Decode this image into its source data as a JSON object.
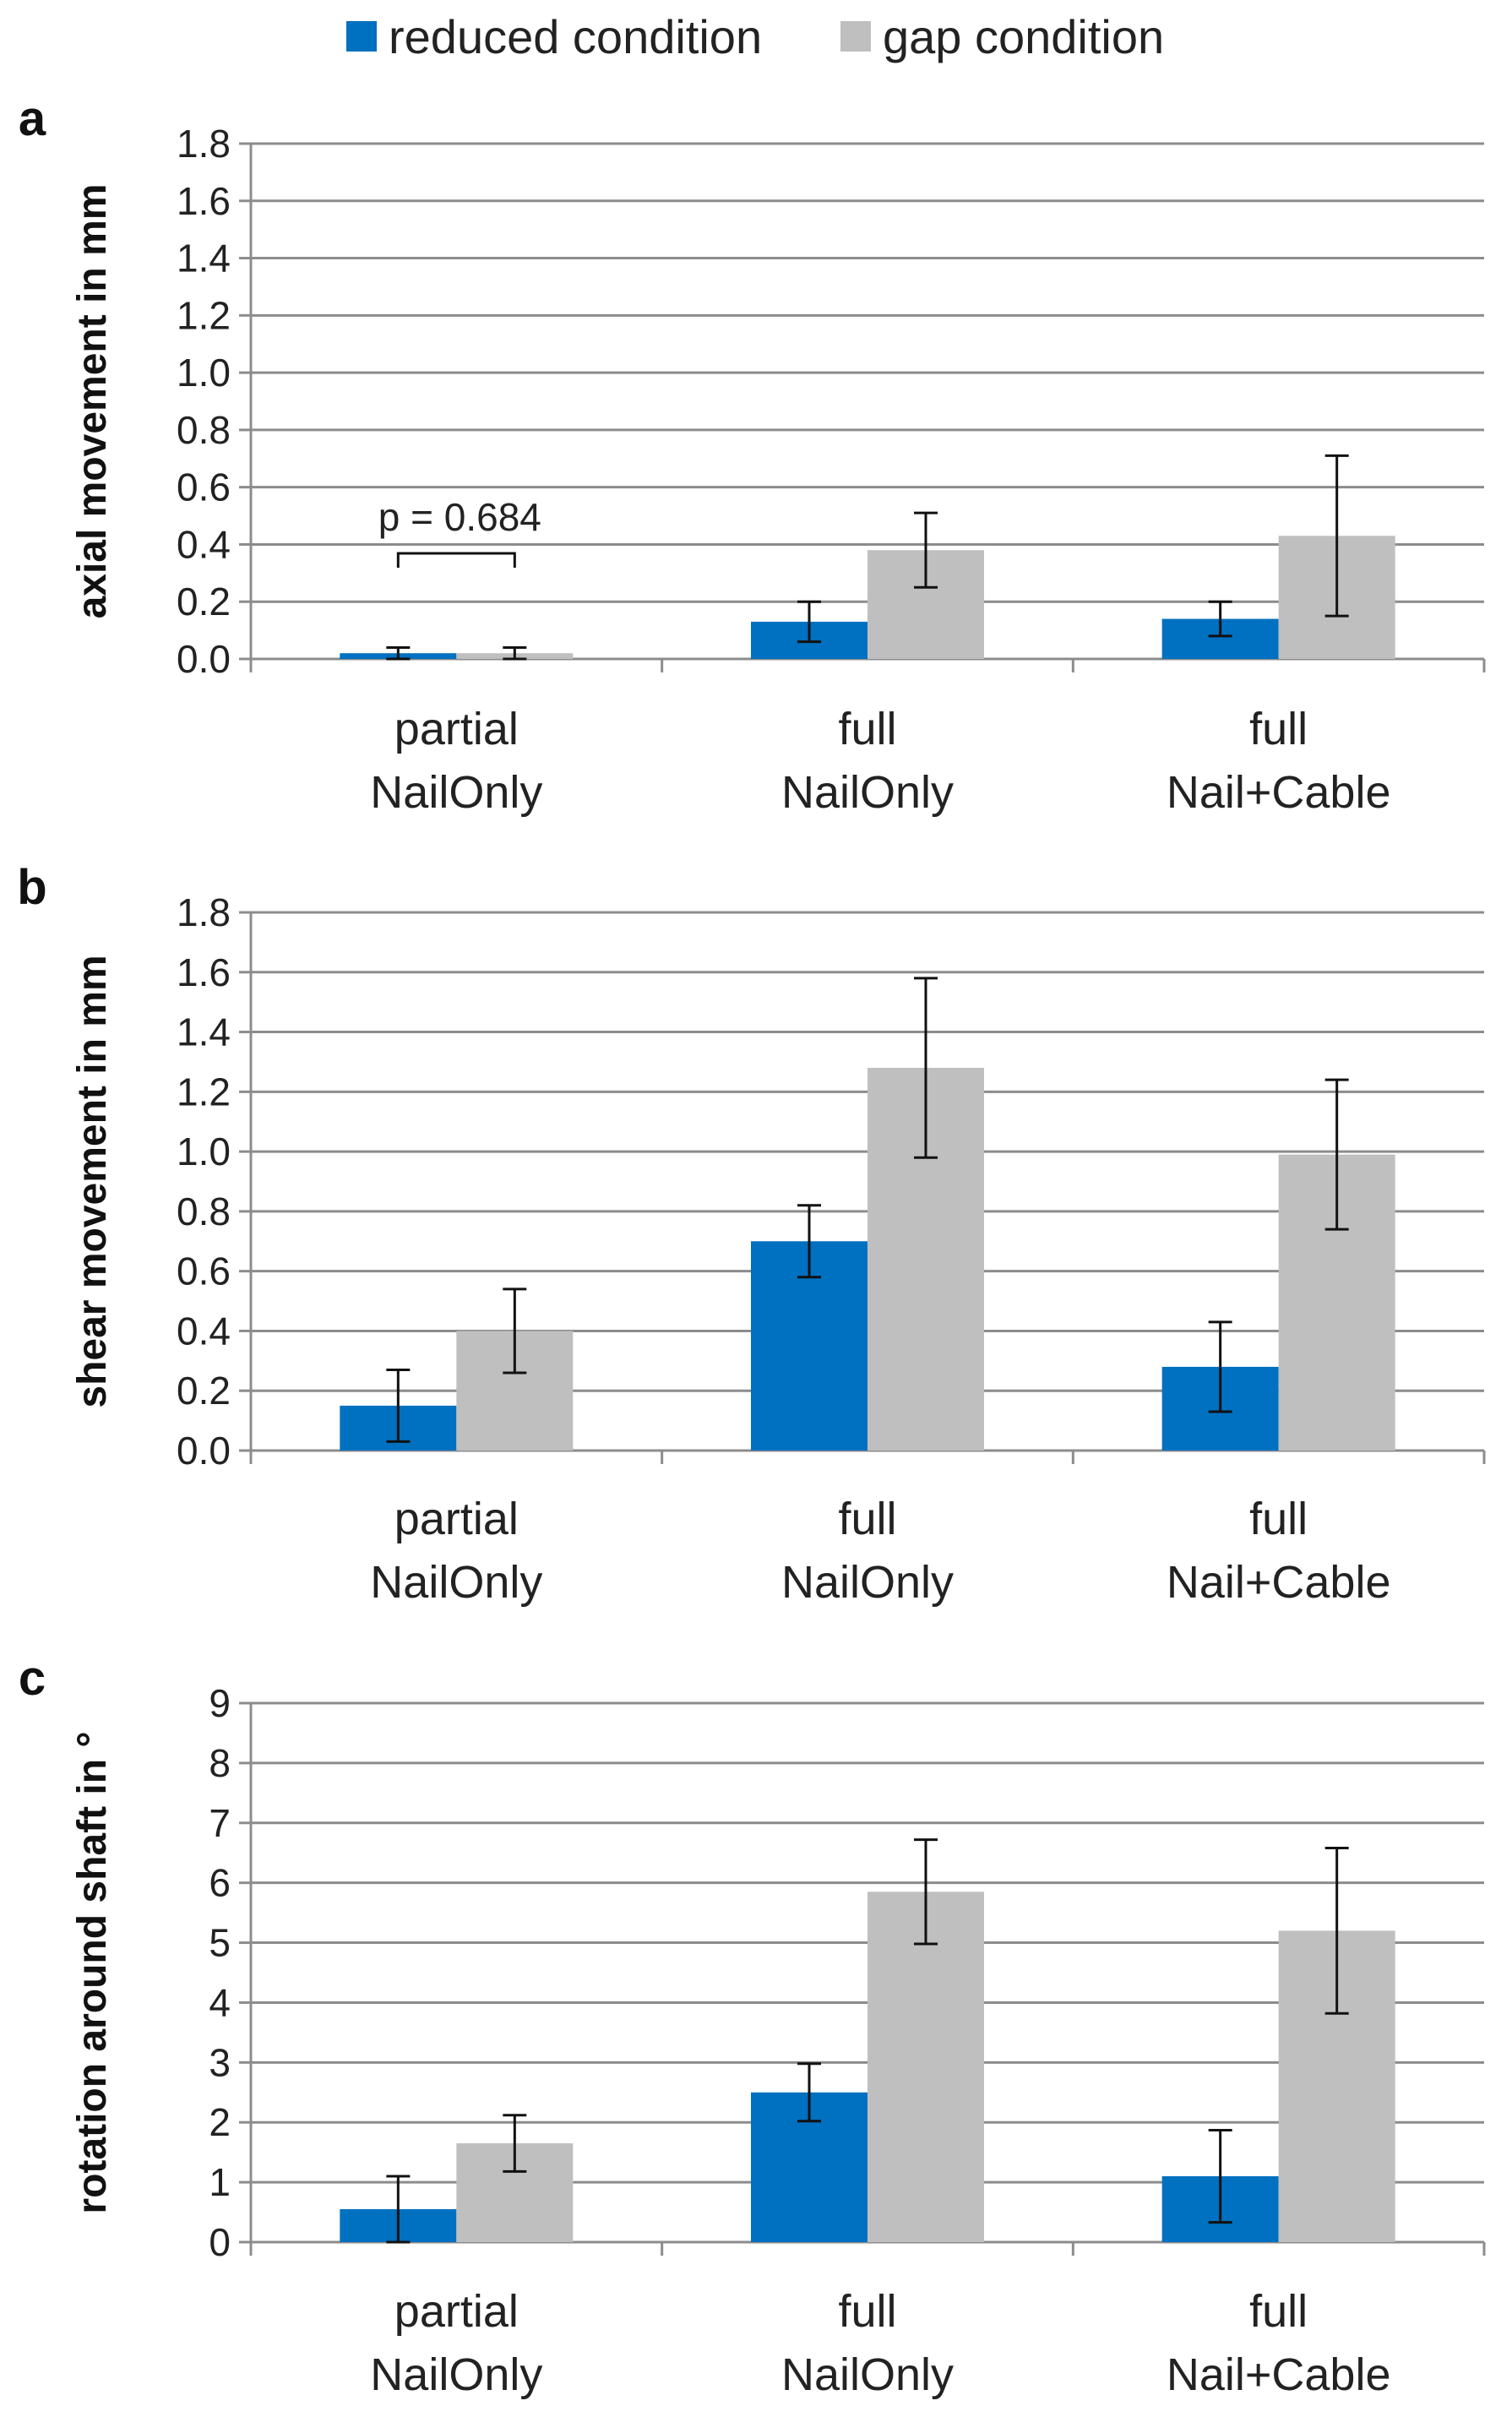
{
  "legend": {
    "reduced": {
      "label": "reduced condition",
      "color": "#0070C0"
    },
    "gap": {
      "label": "gap condition",
      "color": "#BFBFBF"
    }
  },
  "chart_data": [
    {
      "type": "bar",
      "panel_letter": "a",
      "ylabel": "axial movement in mm",
      "ylim": [
        0,
        1.8
      ],
      "yticks": [
        "0.0",
        "0.2",
        "0.4",
        "0.6",
        "0.8",
        "1.0",
        "1.2",
        "1.4",
        "1.6",
        "1.8"
      ],
      "categories": [
        [
          "partial",
          "NailOnly"
        ],
        [
          "full",
          "NailOnly"
        ],
        [
          "full",
          "Nail+Cable"
        ]
      ],
      "series": [
        {
          "name": "reduced condition",
          "color": "#0070C0",
          "values": [
            0.02,
            0.13,
            0.14
          ],
          "errors": [
            0.02,
            0.07,
            0.06
          ]
        },
        {
          "name": "gap condition",
          "color": "#BFBFBF",
          "values": [
            0.02,
            0.38,
            0.43
          ],
          "errors": [
            0.02,
            0.13,
            0.28
          ]
        }
      ],
      "annotation": {
        "text": "p = 0.684",
        "category_index": 0
      }
    },
    {
      "type": "bar",
      "panel_letter": "b",
      "ylabel": "shear movement in mm",
      "ylim": [
        0,
        1.8
      ],
      "yticks": [
        "0.0",
        "0.2",
        "0.4",
        "0.6",
        "0.8",
        "1.0",
        "1.2",
        "1.4",
        "1.6",
        "1.8"
      ],
      "categories": [
        [
          "partial",
          "NailOnly"
        ],
        [
          "full",
          "NailOnly"
        ],
        [
          "full",
          "Nail+Cable"
        ]
      ],
      "series": [
        {
          "name": "reduced condition",
          "color": "#0070C0",
          "values": [
            0.15,
            0.7,
            0.28
          ],
          "errors": [
            0.12,
            0.12,
            0.15
          ]
        },
        {
          "name": "gap condition",
          "color": "#BFBFBF",
          "values": [
            0.4,
            1.28,
            0.99
          ],
          "errors": [
            0.14,
            0.3,
            0.25
          ]
        }
      ]
    },
    {
      "type": "bar",
      "panel_letter": "c",
      "ylabel": "rotation around shaft in °",
      "ylim": [
        0,
        9
      ],
      "yticks": [
        "0",
        "1",
        "2",
        "3",
        "4",
        "5",
        "6",
        "7",
        "8",
        "9"
      ],
      "categories": [
        [
          "partial",
          "NailOnly"
        ],
        [
          "full",
          "NailOnly"
        ],
        [
          "full",
          "Nail+Cable"
        ]
      ],
      "series": [
        {
          "name": "reduced condition",
          "color": "#0070C0",
          "values": [
            0.55,
            2.5,
            1.1
          ],
          "errors": [
            0.55,
            0.48,
            0.77
          ]
        },
        {
          "name": "gap condition",
          "color": "#BFBFBF",
          "values": [
            1.65,
            5.85,
            5.2
          ],
          "errors": [
            0.47,
            0.87,
            1.38
          ]
        }
      ]
    }
  ]
}
